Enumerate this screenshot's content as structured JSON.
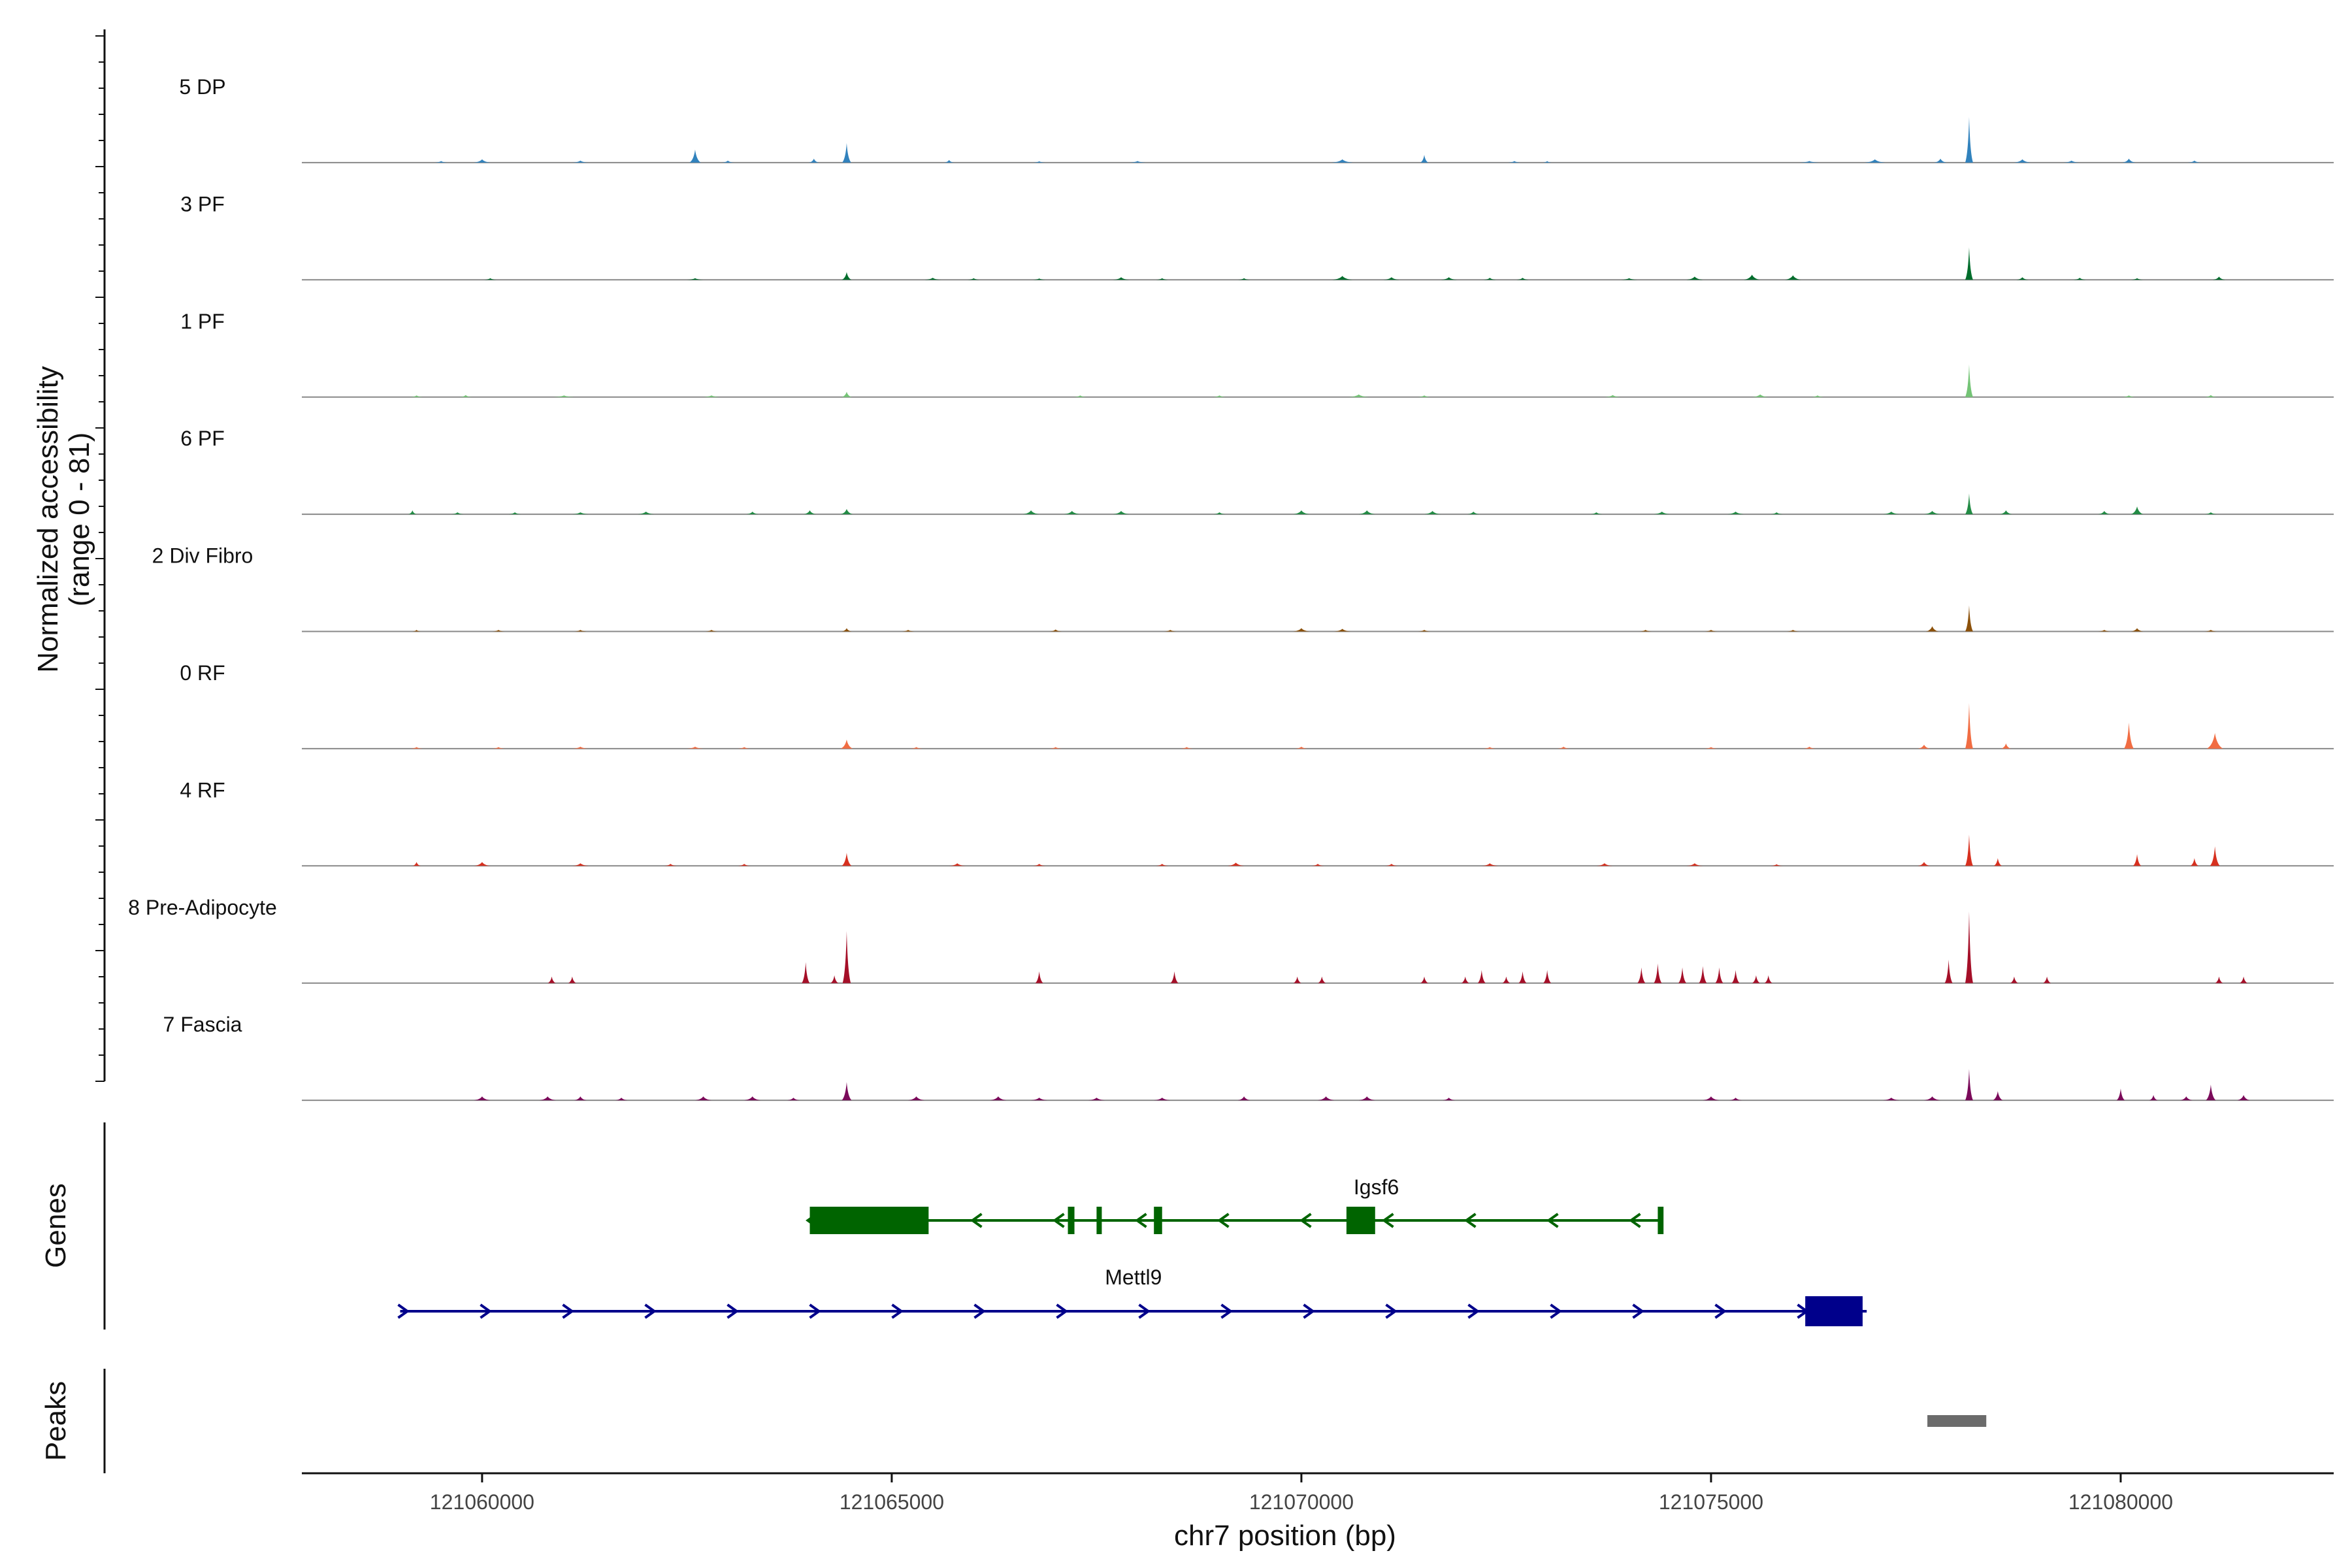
{
  "chart_data": {
    "type": "genome-coverage-tracks",
    "y_axis_title": [
      "Normalized accessibility",
      "(range 0 - 81)"
    ],
    "y_range": [
      0,
      81
    ],
    "x_axis_title": "chr7 position (bp)",
    "x_range": [
      121057800,
      121082600
    ],
    "x_ticks": [
      121060000,
      121065000,
      121070000,
      121075000,
      121080000
    ],
    "tracks": [
      {
        "label": "5 DP",
        "color": "#3182bd",
        "peaks": [
          [
            121059500,
            1.2,
            150
          ],
          [
            121060000,
            2.5,
            200
          ],
          [
            121061200,
            1.5,
            200
          ],
          [
            121062600,
            10,
            140
          ],
          [
            121063000,
            1.5,
            150
          ],
          [
            121064050,
            3,
            120
          ],
          [
            121064450,
            15,
            110
          ],
          [
            121065700,
            2,
            120
          ],
          [
            121066800,
            1,
            150
          ],
          [
            121068000,
            1.2,
            200
          ],
          [
            121070500,
            2.5,
            260
          ],
          [
            121071500,
            6,
            100
          ],
          [
            121072600,
            1.2,
            150
          ],
          [
            121073000,
            1.2,
            100
          ],
          [
            121076200,
            1.2,
            250
          ],
          [
            121077000,
            2.5,
            250
          ],
          [
            121077800,
            3,
            150
          ],
          [
            121078150,
            35,
            90
          ],
          [
            121078800,
            2.5,
            200
          ],
          [
            121079400,
            1.5,
            200
          ],
          [
            121080100,
            3,
            160
          ],
          [
            121080900,
            1.5,
            160
          ]
        ]
      },
      {
        "label": "3 PF",
        "color": "#006d2c",
        "peaks": [
          [
            121060100,
            1.2,
            150
          ],
          [
            121062600,
            1.2,
            200
          ],
          [
            121064450,
            6,
            120
          ],
          [
            121065500,
            1.5,
            200
          ],
          [
            121066000,
            1.2,
            150
          ],
          [
            121066800,
            1,
            150
          ],
          [
            121067800,
            2,
            200
          ],
          [
            121068300,
            1.2,
            150
          ],
          [
            121069300,
            1.2,
            150
          ],
          [
            121070500,
            3,
            250
          ],
          [
            121071100,
            2,
            200
          ],
          [
            121071800,
            2,
            200
          ],
          [
            121072300,
            1.5,
            150
          ],
          [
            121072700,
            1.5,
            150
          ],
          [
            121074000,
            1.2,
            200
          ],
          [
            121074800,
            2.5,
            200
          ],
          [
            121075500,
            4,
            200
          ],
          [
            121076000,
            3.5,
            200
          ],
          [
            121078150,
            25,
            90
          ],
          [
            121078800,
            2,
            150
          ],
          [
            121079500,
            1.5,
            150
          ],
          [
            121080200,
            1.2,
            150
          ],
          [
            121081200,
            2.5,
            150
          ]
        ]
      },
      {
        "label": "1 PF",
        "color": "#74c476",
        "peaks": [
          [
            121059200,
            1.2,
            150
          ],
          [
            121059800,
            1.5,
            150
          ],
          [
            121061000,
            1.2,
            250
          ],
          [
            121062800,
            1.2,
            200
          ],
          [
            121064450,
            4,
            120
          ],
          [
            121067300,
            1.2,
            150
          ],
          [
            121069000,
            1.2,
            150
          ],
          [
            121070700,
            2,
            250
          ],
          [
            121071500,
            1.2,
            150
          ],
          [
            121073800,
            1.5,
            200
          ],
          [
            121075600,
            2,
            200
          ],
          [
            121076300,
            1.2,
            150
          ],
          [
            121078150,
            25,
            90
          ],
          [
            121080100,
            1.2,
            150
          ],
          [
            121081100,
            1.5,
            150
          ]
        ]
      },
      {
        "label": "6 PF",
        "color": "#238b45",
        "peaks": [
          [
            121059150,
            3,
            100
          ],
          [
            121059700,
            1.5,
            150
          ],
          [
            121060400,
            1.5,
            150
          ],
          [
            121061200,
            1.5,
            200
          ],
          [
            121062000,
            2,
            200
          ],
          [
            121063300,
            2,
            150
          ],
          [
            121064000,
            3,
            150
          ],
          [
            121064450,
            4,
            150
          ],
          [
            121066700,
            3,
            200
          ],
          [
            121067200,
            2.5,
            200
          ],
          [
            121067800,
            2.5,
            200
          ],
          [
            121069000,
            1.5,
            150
          ],
          [
            121070000,
            3,
            200
          ],
          [
            121070800,
            3,
            200
          ],
          [
            121071600,
            2.5,
            200
          ],
          [
            121072100,
            2,
            150
          ],
          [
            121073600,
            1.5,
            150
          ],
          [
            121074400,
            2,
            200
          ],
          [
            121075300,
            2,
            200
          ],
          [
            121075800,
            1.5,
            150
          ],
          [
            121077200,
            2,
            200
          ],
          [
            121077700,
            2.5,
            200
          ],
          [
            121078150,
            16,
            90
          ],
          [
            121078600,
            3,
            150
          ],
          [
            121079800,
            2.5,
            150
          ],
          [
            121080200,
            6,
            150
          ],
          [
            121081100,
            1.5,
            150
          ]
        ]
      },
      {
        "label": "2 Div Fibro",
        "color": "#8c510a",
        "peaks": [
          [
            121059200,
            1.2,
            100
          ],
          [
            121060200,
            1.2,
            150
          ],
          [
            121061200,
            1.2,
            150
          ],
          [
            121062800,
            1.2,
            150
          ],
          [
            121064450,
            2.5,
            120
          ],
          [
            121065200,
            1.2,
            150
          ],
          [
            121067000,
            1.5,
            150
          ],
          [
            121068400,
            1.2,
            150
          ],
          [
            121070000,
            2.5,
            200
          ],
          [
            121070500,
            2,
            200
          ],
          [
            121071500,
            1.2,
            150
          ],
          [
            121074200,
            1.2,
            150
          ],
          [
            121075000,
            1.2,
            150
          ],
          [
            121076000,
            1.2,
            150
          ],
          [
            121077700,
            4,
            150
          ],
          [
            121078150,
            20,
            90
          ],
          [
            121079800,
            1.2,
            150
          ],
          [
            121080200,
            2.5,
            150
          ],
          [
            121081100,
            1.2,
            150
          ]
        ]
      },
      {
        "label": "0 RF",
        "color": "#f16d43",
        "peaks": [
          [
            121059200,
            1.2,
            150
          ],
          [
            121060200,
            1.2,
            150
          ],
          [
            121061200,
            1.5,
            200
          ],
          [
            121062600,
            1.5,
            200
          ],
          [
            121063200,
            1.2,
            150
          ],
          [
            121064450,
            7,
            150
          ],
          [
            121065300,
            1.2,
            150
          ],
          [
            121067000,
            1.2,
            150
          ],
          [
            121068600,
            1.2,
            150
          ],
          [
            121070000,
            1.5,
            150
          ],
          [
            121072300,
            1.2,
            150
          ],
          [
            121073200,
            1.5,
            150
          ],
          [
            121075000,
            1.2,
            150
          ],
          [
            121076200,
            1.5,
            150
          ],
          [
            121077600,
            3,
            150
          ],
          [
            121078150,
            35,
            90
          ],
          [
            121078600,
            4,
            120
          ],
          [
            121080100,
            20,
            120
          ],
          [
            121081150,
            12,
            200
          ]
        ]
      },
      {
        "label": "4 RF",
        "color": "#d7301f",
        "peaks": [
          [
            121059200,
            3,
            100
          ],
          [
            121060000,
            3,
            200
          ],
          [
            121061200,
            2,
            200
          ],
          [
            121062300,
            1.5,
            150
          ],
          [
            121063200,
            1.5,
            150
          ],
          [
            121064450,
            10,
            120
          ],
          [
            121065800,
            2,
            200
          ],
          [
            121066800,
            1.5,
            150
          ],
          [
            121068300,
            1.5,
            150
          ],
          [
            121069200,
            2.5,
            200
          ],
          [
            121070200,
            1.5,
            150
          ],
          [
            121071100,
            1.5,
            150
          ],
          [
            121072300,
            2,
            200
          ],
          [
            121073700,
            2,
            200
          ],
          [
            121074800,
            2,
            200
          ],
          [
            121075800,
            1.2,
            150
          ],
          [
            121077600,
            3,
            150
          ],
          [
            121078150,
            24,
            90
          ],
          [
            121078500,
            6,
            100
          ],
          [
            121080200,
            9,
            100
          ],
          [
            121080900,
            6,
            100
          ],
          [
            121081150,
            15,
            120
          ]
        ]
      },
      {
        "label": "8 Pre-Adipocyte",
        "color": "#a50f28",
        "peaks": [
          [
            121060850,
            5,
            60
          ],
          [
            121061100,
            5,
            60
          ],
          [
            121063950,
            16,
            60
          ],
          [
            121064300,
            6,
            60
          ],
          [
            121064450,
            40,
            100
          ],
          [
            121066800,
            9,
            60
          ],
          [
            121068450,
            9,
            60
          ],
          [
            121069950,
            5,
            60
          ],
          [
            121070250,
            5,
            60
          ],
          [
            121071500,
            5,
            60
          ],
          [
            121072000,
            5,
            60
          ],
          [
            121072200,
            10,
            60
          ],
          [
            121072500,
            5,
            60
          ],
          [
            121072700,
            9,
            60
          ],
          [
            121073000,
            10,
            60
          ],
          [
            121074150,
            12,
            60
          ],
          [
            121074350,
            15,
            60
          ],
          [
            121074650,
            12,
            60
          ],
          [
            121074900,
            13,
            60
          ],
          [
            121075100,
            12,
            60
          ],
          [
            121075300,
            10,
            60
          ],
          [
            121075550,
            6,
            60
          ],
          [
            121075700,
            6,
            60
          ],
          [
            121077900,
            18,
            60
          ],
          [
            121078150,
            55,
            90
          ],
          [
            121078700,
            5,
            60
          ],
          [
            121079100,
            5,
            60
          ],
          [
            121081200,
            5,
            60
          ],
          [
            121081500,
            5,
            60
          ]
        ]
      },
      {
        "label": "7 Fascia",
        "color": "#7b0a5a",
        "peaks": [
          [
            121060000,
            3,
            200
          ],
          [
            121060800,
            3,
            200
          ],
          [
            121061200,
            3,
            150
          ],
          [
            121061700,
            2,
            150
          ],
          [
            121062700,
            3,
            200
          ],
          [
            121063300,
            3,
            200
          ],
          [
            121063800,
            2,
            150
          ],
          [
            121064450,
            14,
            120
          ],
          [
            121065300,
            3,
            200
          ],
          [
            121066300,
            3,
            200
          ],
          [
            121066800,
            2,
            200
          ],
          [
            121067500,
            2,
            200
          ],
          [
            121068300,
            2,
            200
          ],
          [
            121069300,
            3,
            150
          ],
          [
            121070300,
            3,
            200
          ],
          [
            121070800,
            3,
            200
          ],
          [
            121071800,
            2,
            150
          ],
          [
            121075000,
            3,
            200
          ],
          [
            121075300,
            2,
            150
          ],
          [
            121077200,
            2,
            200
          ],
          [
            121077700,
            3,
            200
          ],
          [
            121078150,
            24,
            90
          ],
          [
            121078500,
            7,
            120
          ],
          [
            121080000,
            9,
            100
          ],
          [
            121080400,
            4,
            100
          ],
          [
            121080800,
            3,
            150
          ],
          [
            121081100,
            12,
            120
          ],
          [
            121081500,
            4,
            150
          ]
        ]
      }
    ],
    "genes_panel_label": "Genes",
    "genes": [
      {
        "name": "Igsf6",
        "color": "#006400",
        "strand": "-",
        "start": 121064000,
        "end": 121074400,
        "exons": [
          [
            121064000,
            121065450
          ],
          [
            121067150,
            121067230
          ],
          [
            121067500,
            121067550
          ],
          [
            121068200,
            121068300
          ],
          [
            121070550,
            121070900
          ],
          [
            121074350,
            121074420
          ]
        ]
      },
      {
        "name": "Mettl9",
        "color": "#00008b",
        "strand": "+",
        "start": 121059000,
        "end": 121076900,
        "exons": [
          [
            121076150,
            121076850
          ]
        ]
      }
    ],
    "peaks_panel_label": "Peaks",
    "called_peaks": [
      [
        121077800,
        121078200
      ]
    ]
  }
}
